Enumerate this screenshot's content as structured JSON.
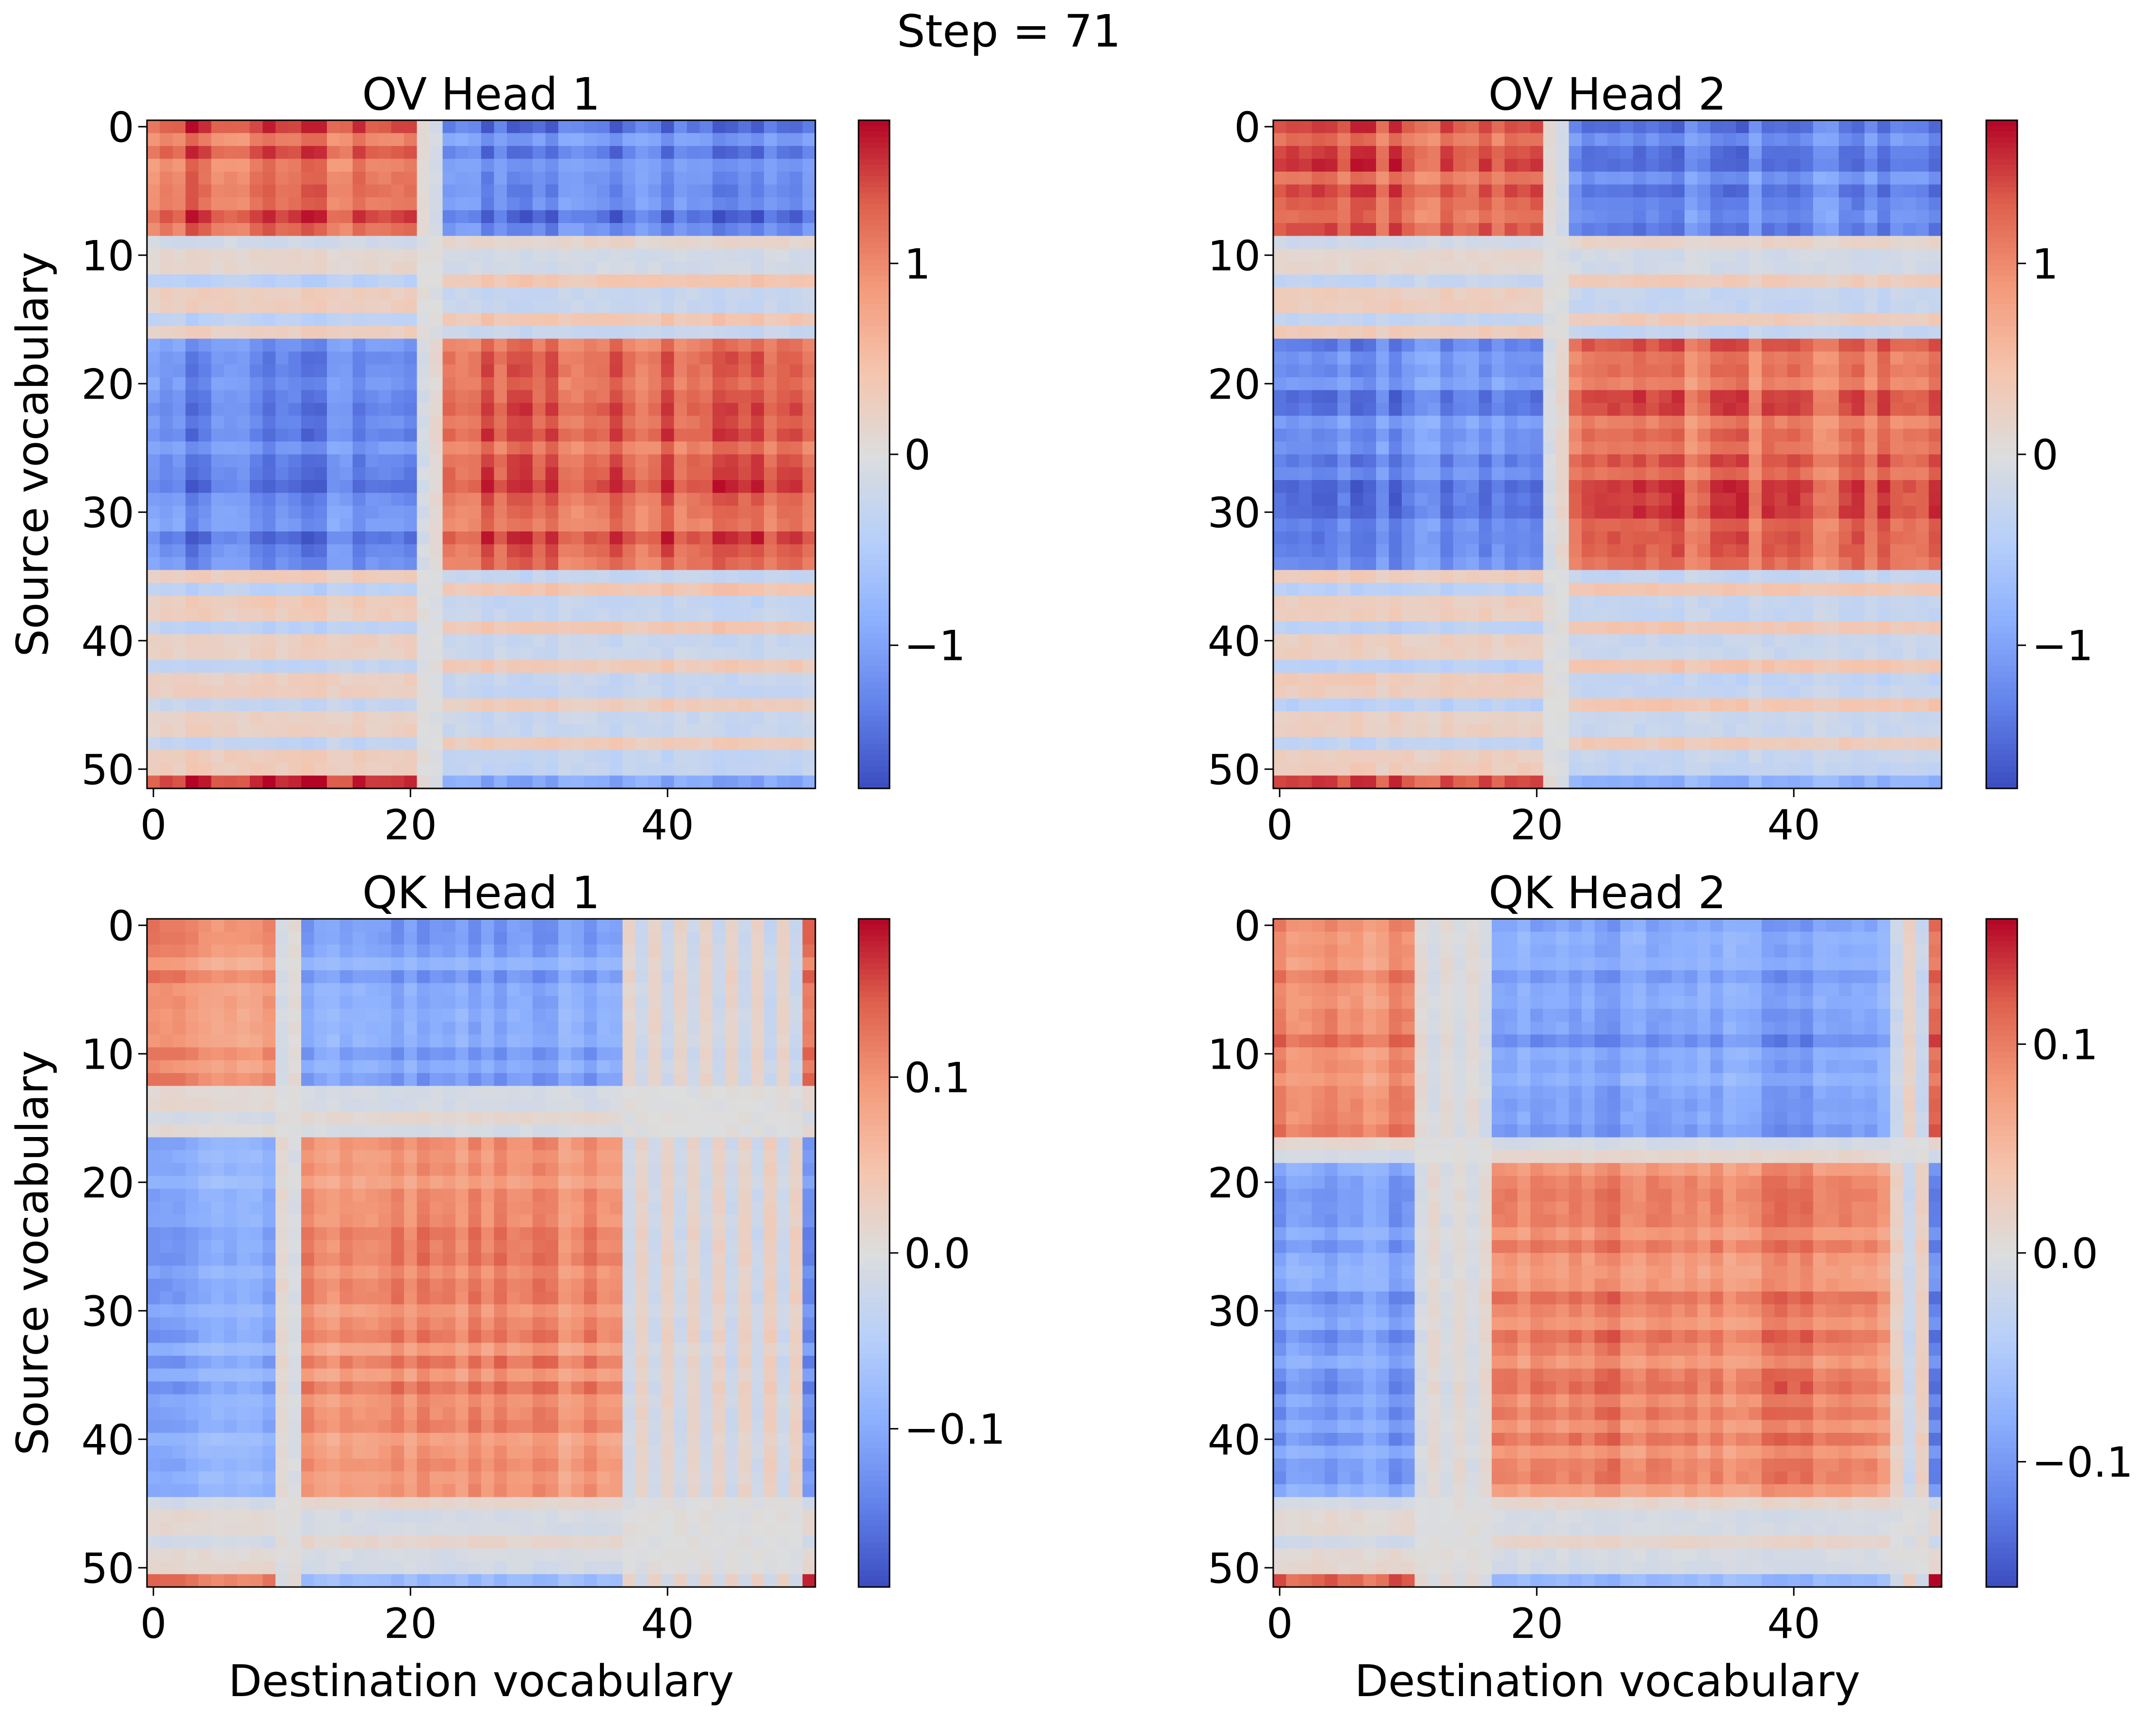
{
  "figure": {
    "suptitle": "Step = 71"
  },
  "chart_data": [
    {
      "id": "ov1",
      "type": "heatmap",
      "title": "OV Head 1",
      "xlabel": "",
      "ylabel": "Source vocabulary",
      "xticks": [
        0,
        20,
        40
      ],
      "yticks": [
        0,
        10,
        20,
        30,
        40,
        50
      ],
      "grid_size": 52,
      "colormap": "coolwarm",
      "colorbar": {
        "range": [
          -1.75,
          1.75
        ],
        "ticks": [
          -1,
          0,
          1
        ],
        "tick_labels": [
          "−1",
          "0",
          "1"
        ]
      },
      "group_a": {
        "rows": [
          0,
          8
        ],
        "cols": [
          0,
          20
        ]
      },
      "group_b": {
        "rows": [
          17,
          34
        ],
        "cols": [
          23,
          51
        ]
      },
      "neutral_rows": [
        9,
        10,
        11
      ],
      "neutral_cols": [
        21,
        22
      ],
      "peak_value": 1.6,
      "edge_row": {
        "index": 51,
        "scale": 1.0
      },
      "edge_col": null
    },
    {
      "id": "ov2",
      "type": "heatmap",
      "title": "OV Head 2",
      "xlabel": "",
      "ylabel": "",
      "xticks": [
        0,
        20,
        40
      ],
      "yticks": [
        0,
        10,
        20,
        30,
        40,
        50
      ],
      "grid_size": 52,
      "colormap": "coolwarm",
      "colorbar": {
        "range": [
          -1.75,
          1.75
        ],
        "ticks": [
          -1,
          0,
          1
        ],
        "tick_labels": [
          "−1",
          "0",
          "1"
        ]
      },
      "group_a": {
        "rows": [
          0,
          8
        ],
        "cols": [
          0,
          20
        ]
      },
      "group_b": {
        "rows": [
          17,
          34
        ],
        "cols": [
          23,
          51
        ]
      },
      "neutral_rows": [
        9,
        10,
        11
      ],
      "neutral_cols": [
        21,
        22
      ],
      "peak_value": 1.55,
      "edge_row": {
        "index": 51,
        "scale": 0.9
      },
      "edge_col": null
    },
    {
      "id": "qk1",
      "type": "heatmap",
      "title": "QK Head 1",
      "xlabel": "Destination vocabulary",
      "ylabel": "Source vocabulary",
      "xticks": [
        0,
        20,
        40
      ],
      "yticks": [
        0,
        10,
        20,
        30,
        40,
        50
      ],
      "grid_size": 52,
      "colormap": "coolwarm",
      "colorbar": {
        "range": [
          -0.19,
          0.19
        ],
        "ticks": [
          -0.1,
          0.0,
          0.1
        ],
        "tick_labels": [
          "−0.1",
          "0.0",
          "0.1"
        ]
      },
      "group_a": {
        "rows": [
          0,
          12
        ],
        "cols": [
          0,
          9
        ]
      },
      "group_b": {
        "rows": [
          17,
          44
        ],
        "cols": [
          12,
          36
        ]
      },
      "neutral_rows": [
        13,
        14,
        15,
        16,
        45,
        46,
        47,
        48,
        49,
        50
      ],
      "neutral_cols": [
        10,
        11
      ],
      "peak_value": 0.13,
      "edge_row": {
        "index": 51,
        "scale": 1.0
      },
      "edge_col": {
        "index": 51,
        "scale": 1.0
      }
    },
    {
      "id": "qk2",
      "type": "heatmap",
      "title": "QK Head 2",
      "xlabel": "Destination vocabulary",
      "ylabel": "",
      "xticks": [
        0,
        20,
        40
      ],
      "yticks": [
        0,
        10,
        20,
        30,
        40,
        50
      ],
      "grid_size": 52,
      "colormap": "coolwarm",
      "colorbar": {
        "range": [
          -0.16,
          0.16
        ],
        "ticks": [
          -0.1,
          0.0,
          0.1
        ],
        "tick_labels": [
          "−0.1",
          "0.0",
          "0.1"
        ]
      },
      "group_a": {
        "rows": [
          0,
          16
        ],
        "cols": [
          0,
          10
        ]
      },
      "group_b": {
        "rows": [
          19,
          44
        ],
        "cols": [
          17,
          47
        ]
      },
      "neutral_rows": [
        17,
        18,
        45,
        46,
        47,
        48,
        49,
        50
      ],
      "neutral_cols": [
        11,
        12,
        13,
        14,
        15,
        16
      ],
      "peak_value": 0.12,
      "edge_row": {
        "index": 51,
        "scale": 1.0
      },
      "edge_col": {
        "index": 51,
        "scale": 1.0
      }
    }
  ]
}
